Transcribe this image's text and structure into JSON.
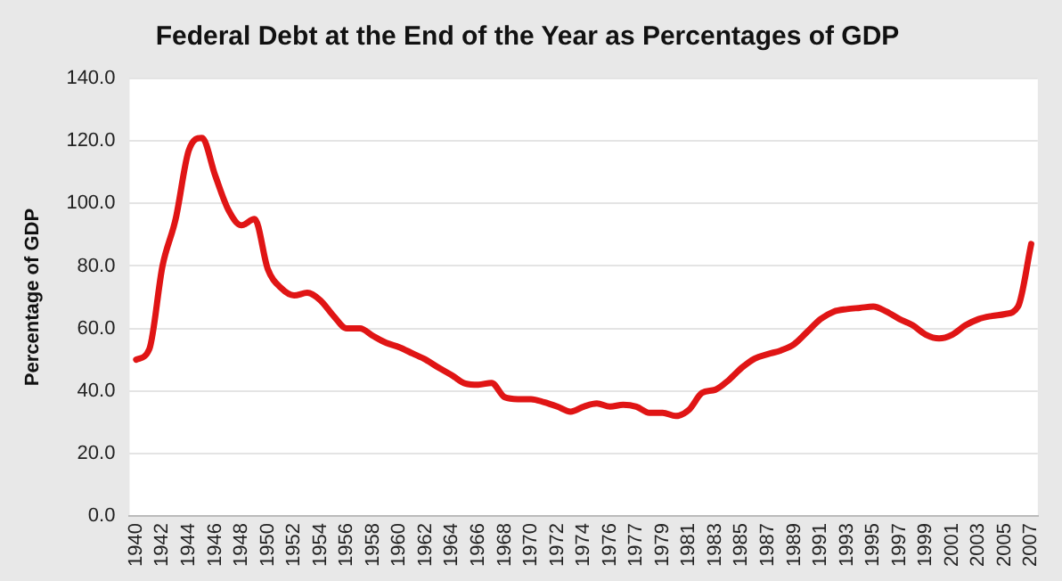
{
  "chart_data": {
    "type": "line",
    "title": "Federal Debt at the End of the Year as Percentages of GDP",
    "ylabel": "Percentage of GDP",
    "categories": [
      "1940",
      null,
      "1942",
      null,
      "1944",
      null,
      "1946",
      null,
      "1948",
      null,
      "1950",
      null,
      "1952",
      null,
      "1954",
      null,
      "1956",
      null,
      "1958",
      null,
      "1960",
      null,
      "1962",
      null,
      "1964",
      null,
      "1966",
      null,
      "1968",
      null,
      "1970",
      null,
      "1972",
      null,
      "1974",
      null,
      "1976",
      null,
      "1977",
      null,
      "1979",
      null,
      "1981",
      null,
      "1983",
      null,
      "1985",
      null,
      "1987",
      null,
      "1989",
      null,
      "1991",
      null,
      "1993",
      null,
      "1995",
      null,
      "1997",
      null,
      "1999",
      null,
      "2001",
      null,
      "2003",
      null,
      "2005",
      null,
      "2007"
    ],
    "series": [
      {
        "color": "#e01515",
        "values": [
          50,
          53.4,
          80,
          95,
          117,
          121,
          109,
          98,
          93,
          95,
          79,
          73,
          70.6,
          71.4,
          69,
          64,
          60,
          60,
          57.6,
          55.4,
          54,
          52,
          50,
          47.4,
          45,
          42.4,
          42,
          42.6,
          38,
          37.4,
          37.4,
          36.4,
          35,
          33.4,
          35,
          36,
          35,
          35.6,
          35,
          33,
          33,
          32,
          34,
          39.4,
          40.4,
          43.4,
          47.4,
          50.4,
          51.8,
          53,
          55,
          59,
          63,
          65.4,
          66.2,
          66.6,
          67,
          65.4,
          63,
          61,
          58,
          56.8,
          58,
          61,
          63,
          64,
          64.6,
          67,
          87
        ]
      }
    ],
    "ylim": [
      0,
      140
    ],
    "yticks": [
      {
        "value": 0,
        "label": "0.0"
      },
      {
        "value": 20,
        "label": "20.0"
      },
      {
        "value": 40,
        "label": "40.0"
      },
      {
        "value": 60,
        "label": "60.0"
      },
      {
        "value": 80,
        "label": "80.0"
      },
      {
        "value": 100,
        "label": "100.0"
      },
      {
        "value": 120,
        "label": "120.0"
      },
      {
        "value": 140,
        "label": "140.0"
      }
    ],
    "grid": "y",
    "legend": false,
    "marker": "none",
    "line_style": "solid"
  }
}
